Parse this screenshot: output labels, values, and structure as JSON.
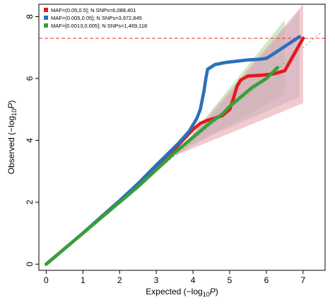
{
  "chart_data": {
    "type": "scatter",
    "title": "",
    "xlabel": {
      "prefix": "Expected",
      "open": "(−log",
      "sub": "10",
      "var": "P",
      "close": ")"
    },
    "ylabel": {
      "prefix": "Observed",
      "open": "(−log",
      "sub": "10",
      "var": "P",
      "close": ")"
    },
    "xlim": [
      -0.2,
      7.6
    ],
    "ylim": [
      -0.2,
      8.4
    ],
    "xticks": [
      0,
      1,
      2,
      3,
      4,
      5,
      6,
      7
    ],
    "yticks": [
      0,
      2,
      4,
      6,
      8
    ],
    "threshold": {
      "y": 7.3,
      "color": "#e8322f"
    },
    "legend_position": "top-left",
    "series": [
      {
        "name": "MAF=(0.05,0.5]; N SNPs=6,088,401",
        "color": "#e21a1c",
        "band_color": "#e8a0a8",
        "points": [
          [
            0,
            0
          ],
          [
            0.5,
            0.5
          ],
          [
            1,
            1
          ],
          [
            1.5,
            1.52
          ],
          [
            2,
            2.02
          ],
          [
            2.5,
            2.55
          ],
          [
            3,
            3.15
          ],
          [
            3.2,
            3.38
          ],
          [
            3.5,
            3.72
          ],
          [
            3.8,
            4.1
          ],
          [
            4.0,
            4.35
          ],
          [
            4.2,
            4.55
          ],
          [
            4.4,
            4.65
          ],
          [
            4.6,
            4.72
          ],
          [
            4.8,
            4.8
          ],
          [
            5.0,
            5.0
          ],
          [
            5.1,
            5.35
          ],
          [
            5.2,
            5.75
          ],
          [
            5.3,
            5.95
          ],
          [
            5.5,
            6.08
          ],
          [
            5.8,
            6.1
          ],
          [
            6.0,
            6.12
          ],
          [
            6.2,
            6.15
          ],
          [
            6.5,
            6.25
          ],
          [
            7.0,
            7.3
          ]
        ],
        "band": {
          "x": [
            3.5,
            7.0
          ],
          "lower_end": 5.2,
          "upper_end": 8.4
        }
      },
      {
        "name": "MAF=(0.005,0.05]; N SNPs=3,972,845",
        "color": "#2b6fb8",
        "band_color": "#a9bde0",
        "points": [
          [
            0,
            0
          ],
          [
            0.5,
            0.5
          ],
          [
            1,
            1
          ],
          [
            1.5,
            1.53
          ],
          [
            2,
            2.05
          ],
          [
            2.5,
            2.6
          ],
          [
            3,
            3.2
          ],
          [
            3.3,
            3.55
          ],
          [
            3.6,
            3.9
          ],
          [
            3.9,
            4.3
          ],
          [
            4.1,
            4.7
          ],
          [
            4.2,
            5.0
          ],
          [
            4.3,
            5.6
          ],
          [
            4.35,
            6.0
          ],
          [
            4.4,
            6.3
          ],
          [
            4.6,
            6.45
          ],
          [
            4.9,
            6.52
          ],
          [
            5.2,
            6.56
          ],
          [
            5.5,
            6.6
          ],
          [
            5.8,
            6.62
          ],
          [
            6.0,
            6.65
          ],
          [
            6.2,
            6.8
          ],
          [
            6.9,
            7.35
          ]
        ],
        "band": {
          "x": [
            3.8,
            6.9
          ],
          "lower_end": 5.4,
          "upper_end": 8.2
        }
      },
      {
        "name": "MAF=[0.0013,0.005]; N SNPs=1,469,118",
        "color": "#3a9e3a",
        "band_color": "#a9d9a0",
        "points": [
          [
            0,
            0
          ],
          [
            0.5,
            0.5
          ],
          [
            1,
            1
          ],
          [
            1.5,
            1.5
          ],
          [
            2,
            2.0
          ],
          [
            2.5,
            2.5
          ],
          [
            3,
            3.05
          ],
          [
            3.5,
            3.6
          ],
          [
            4,
            4.1
          ],
          [
            4.5,
            4.6
          ],
          [
            4.8,
            4.85
          ],
          [
            5.0,
            5.1
          ],
          [
            5.2,
            5.3
          ],
          [
            5.4,
            5.5
          ],
          [
            5.6,
            5.7
          ],
          [
            5.8,
            5.85
          ],
          [
            6.0,
            6.0
          ],
          [
            6.3,
            6.35
          ]
        ],
        "band": {
          "x": [
            3.5,
            6.5
          ],
          "lower_end": 5.5,
          "upper_end": 7.9
        }
      }
    ]
  }
}
